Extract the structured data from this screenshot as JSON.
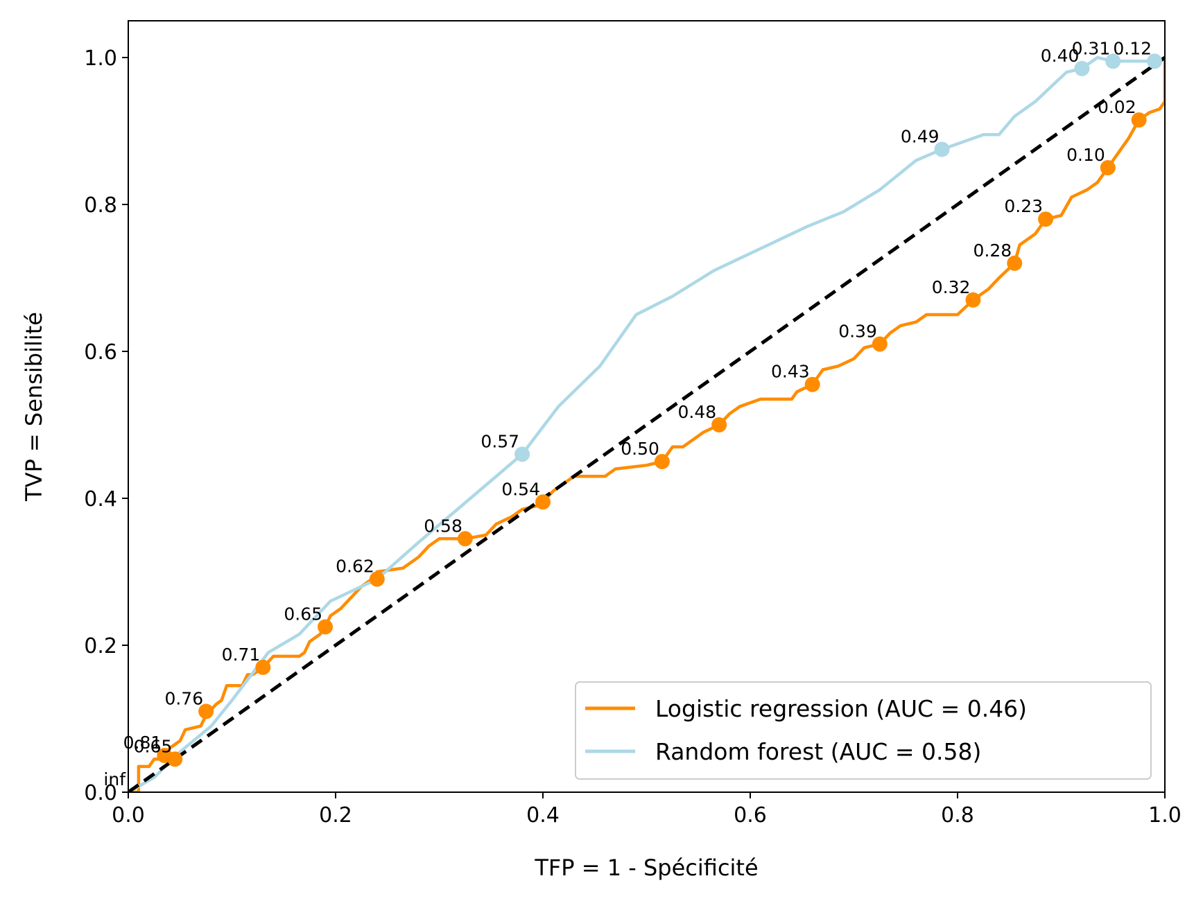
{
  "chart_data": {
    "type": "line",
    "xlabel": "TFP = 1 - Spécificité",
    "ylabel": "TVP = Sensibilité",
    "xlim": [
      0,
      1
    ],
    "ylim": [
      0,
      1.05
    ],
    "x_ticks": [
      0.0,
      0.2,
      0.4,
      0.6,
      0.8,
      1.0
    ],
    "y_ticks": [
      0.0,
      0.2,
      0.4,
      0.6,
      0.8,
      1.0
    ],
    "x_tick_labels": [
      "0.0",
      "0.2",
      "0.4",
      "0.6",
      "0.8",
      "1.0"
    ],
    "y_tick_labels": [
      "0.0",
      "0.2",
      "0.4",
      "0.6",
      "0.8",
      "1.0"
    ],
    "grid": false,
    "legend_position": "lower-right",
    "diagonal": {
      "style": "dashed",
      "color": "#000000",
      "points": [
        [
          0,
          0
        ],
        [
          1,
          1
        ]
      ]
    },
    "series": [
      {
        "name": "Logistic regression (AUC = 0.46)",
        "color": "#ff8c00",
        "style": "step",
        "points": [
          [
            0.0,
            0.0
          ],
          [
            0.01,
            0.0
          ],
          [
            0.01,
            0.035
          ],
          [
            0.02,
            0.035
          ],
          [
            0.025,
            0.045
          ],
          [
            0.035,
            0.045
          ],
          [
            0.04,
            0.06
          ],
          [
            0.05,
            0.07
          ],
          [
            0.055,
            0.085
          ],
          [
            0.07,
            0.09
          ],
          [
            0.075,
            0.105
          ],
          [
            0.085,
            0.12
          ],
          [
            0.09,
            0.125
          ],
          [
            0.095,
            0.145
          ],
          [
            0.11,
            0.145
          ],
          [
            0.115,
            0.16
          ],
          [
            0.12,
            0.16
          ],
          [
            0.13,
            0.17
          ],
          [
            0.14,
            0.185
          ],
          [
            0.165,
            0.185
          ],
          [
            0.17,
            0.19
          ],
          [
            0.175,
            0.205
          ],
          [
            0.185,
            0.215
          ],
          [
            0.19,
            0.225
          ],
          [
            0.195,
            0.24
          ],
          [
            0.205,
            0.25
          ],
          [
            0.215,
            0.265
          ],
          [
            0.225,
            0.28
          ],
          [
            0.235,
            0.29
          ],
          [
            0.24,
            0.3
          ],
          [
            0.265,
            0.305
          ],
          [
            0.28,
            0.32
          ],
          [
            0.29,
            0.335
          ],
          [
            0.3,
            0.345
          ],
          [
            0.325,
            0.345
          ],
          [
            0.345,
            0.35
          ],
          [
            0.355,
            0.365
          ],
          [
            0.37,
            0.375
          ],
          [
            0.38,
            0.385
          ],
          [
            0.395,
            0.39
          ],
          [
            0.4,
            0.395
          ],
          [
            0.41,
            0.41
          ],
          [
            0.42,
            0.42
          ],
          [
            0.43,
            0.43
          ],
          [
            0.46,
            0.43
          ],
          [
            0.47,
            0.44
          ],
          [
            0.5,
            0.445
          ],
          [
            0.515,
            0.45
          ],
          [
            0.525,
            0.47
          ],
          [
            0.535,
            0.47
          ],
          [
            0.545,
            0.48
          ],
          [
            0.555,
            0.49
          ],
          [
            0.57,
            0.5
          ],
          [
            0.58,
            0.515
          ],
          [
            0.59,
            0.525
          ],
          [
            0.61,
            0.535
          ],
          [
            0.64,
            0.535
          ],
          [
            0.645,
            0.545
          ],
          [
            0.66,
            0.555
          ],
          [
            0.67,
            0.575
          ],
          [
            0.685,
            0.58
          ],
          [
            0.7,
            0.59
          ],
          [
            0.71,
            0.605
          ],
          [
            0.725,
            0.61
          ],
          [
            0.735,
            0.625
          ],
          [
            0.745,
            0.635
          ],
          [
            0.76,
            0.64
          ],
          [
            0.77,
            0.65
          ],
          [
            0.8,
            0.65
          ],
          [
            0.815,
            0.67
          ],
          [
            0.83,
            0.685
          ],
          [
            0.84,
            0.7
          ],
          [
            0.855,
            0.72
          ],
          [
            0.86,
            0.745
          ],
          [
            0.875,
            0.76
          ],
          [
            0.885,
            0.78
          ],
          [
            0.9,
            0.785
          ],
          [
            0.91,
            0.81
          ],
          [
            0.925,
            0.82
          ],
          [
            0.935,
            0.83
          ],
          [
            0.945,
            0.85
          ],
          [
            0.955,
            0.87
          ],
          [
            0.965,
            0.89
          ],
          [
            0.975,
            0.915
          ],
          [
            0.985,
            0.925
          ],
          [
            0.995,
            0.93
          ],
          [
            1.0,
            0.94
          ],
          [
            1.0,
            1.0
          ]
        ],
        "thresholds": [
          {
            "label": "0.81",
            "x": 0.035,
            "y": 0.05
          },
          {
            "label": "0.65",
            "x": 0.045,
            "y": 0.045
          },
          {
            "label": "0.76",
            "x": 0.075,
            "y": 0.11
          },
          {
            "label": "0.71",
            "x": 0.13,
            "y": 0.17
          },
          {
            "label": "0.65",
            "x": 0.19,
            "y": 0.225
          },
          {
            "label": "0.62",
            "x": 0.24,
            "y": 0.29
          },
          {
            "label": "0.58",
            "x": 0.325,
            "y": 0.345
          },
          {
            "label": "0.54",
            "x": 0.4,
            "y": 0.395
          },
          {
            "label": "0.50",
            "x": 0.515,
            "y": 0.45
          },
          {
            "label": "0.48",
            "x": 0.57,
            "y": 0.5
          },
          {
            "label": "0.43",
            "x": 0.66,
            "y": 0.555
          },
          {
            "label": "0.39",
            "x": 0.725,
            "y": 0.61
          },
          {
            "label": "0.32",
            "x": 0.815,
            "y": 0.67
          },
          {
            "label": "0.28",
            "x": 0.855,
            "y": 0.72
          },
          {
            "label": "0.23",
            "x": 0.885,
            "y": 0.78
          },
          {
            "label": "0.10",
            "x": 0.945,
            "y": 0.85
          },
          {
            "label": "0.02",
            "x": 0.975,
            "y": 0.915
          }
        ]
      },
      {
        "name": "Random forest (AUC = 0.58)",
        "color": "#add8e6",
        "style": "line",
        "points": [
          [
            0.0,
            0.0
          ],
          [
            0.025,
            0.02
          ],
          [
            0.05,
            0.055
          ],
          [
            0.08,
            0.09
          ],
          [
            0.1,
            0.125
          ],
          [
            0.135,
            0.19
          ],
          [
            0.165,
            0.215
          ],
          [
            0.195,
            0.26
          ],
          [
            0.24,
            0.29
          ],
          [
            0.28,
            0.34
          ],
          [
            0.33,
            0.4
          ],
          [
            0.38,
            0.46
          ],
          [
            0.415,
            0.525
          ],
          [
            0.455,
            0.58
          ],
          [
            0.49,
            0.65
          ],
          [
            0.525,
            0.675
          ],
          [
            0.565,
            0.71
          ],
          [
            0.61,
            0.74
          ],
          [
            0.655,
            0.77
          ],
          [
            0.69,
            0.79
          ],
          [
            0.725,
            0.82
          ],
          [
            0.76,
            0.86
          ],
          [
            0.785,
            0.875
          ],
          [
            0.825,
            0.895
          ],
          [
            0.84,
            0.895
          ],
          [
            0.855,
            0.92
          ],
          [
            0.875,
            0.94
          ],
          [
            0.905,
            0.98
          ],
          [
            0.92,
            0.985
          ],
          [
            0.935,
            1.0
          ],
          [
            0.95,
            0.995
          ],
          [
            0.99,
            0.995
          ],
          [
            1.0,
            1.0
          ]
        ],
        "thresholds": [
          {
            "label": "inf",
            "x": 0.0,
            "y": 0.0
          },
          {
            "label": "0.57",
            "x": 0.38,
            "y": 0.46
          },
          {
            "label": "0.49",
            "x": 0.785,
            "y": 0.875
          },
          {
            "label": "0.40",
            "x": 0.92,
            "y": 0.985
          },
          {
            "label": "0.31",
            "x": 0.95,
            "y": 0.995
          },
          {
            "label": "0.12",
            "x": 0.99,
            "y": 0.995
          }
        ]
      }
    ]
  }
}
